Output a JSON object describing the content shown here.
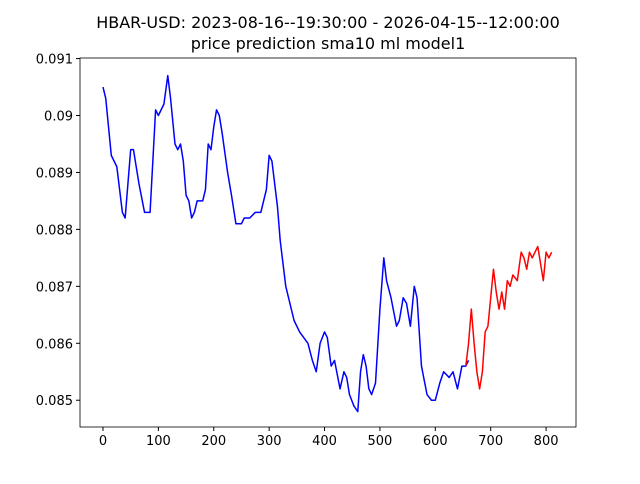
{
  "chart_data": {
    "type": "line",
    "title": "HBAR-USD: 2023-08-16--19:30:00 - 2026-04-15--12:00:00",
    "subtitle": "price prediction sma10 ml model1",
    "xlim": [
      -41.5,
      854
    ],
    "ylim": [
      0.08453,
      0.09101
    ],
    "xticks": [
      0,
      100,
      200,
      300,
      400,
      500,
      600,
      700,
      800
    ],
    "yticks": [
      0.085,
      0.086,
      0.087,
      0.088,
      0.089,
      0.09,
      0.091
    ],
    "grid": false,
    "series": [
      {
        "color": "#0000ff",
        "x": [
          0,
          5,
          15,
          25,
          35,
          40,
          50,
          55,
          65,
          75,
          85,
          95,
          100,
          110,
          117,
          122,
          130,
          135,
          140,
          145,
          150,
          155,
          160,
          165,
          170,
          180,
          185,
          190,
          195,
          200,
          205,
          210,
          215,
          225,
          232,
          240,
          250,
          255,
          265,
          275,
          285,
          295,
          300,
          305,
          315,
          320,
          330,
          340,
          345,
          355,
          370,
          378,
          385,
          392,
          400,
          405,
          412,
          418,
          428,
          435,
          440,
          445,
          453,
          460,
          465,
          470,
          475,
          480,
          485,
          492,
          500,
          507,
          512,
          520,
          530,
          535,
          542,
          548,
          555,
          562,
          567,
          575,
          585,
          593,
          600,
          608,
          615,
          625,
          632,
          640,
          648,
          655,
          660
        ],
        "values": [
          0.0905,
          0.0903,
          0.0893,
          0.0891,
          0.0883,
          0.0882,
          0.0894,
          0.0894,
          0.0888,
          0.0883,
          0.0883,
          0.0901,
          0.09,
          0.0902,
          0.0907,
          0.0903,
          0.0895,
          0.0894,
          0.0895,
          0.0892,
          0.0886,
          0.0885,
          0.0882,
          0.0883,
          0.0885,
          0.0885,
          0.0887,
          0.0895,
          0.0894,
          0.0898,
          0.0901,
          0.09,
          0.0897,
          0.089,
          0.0886,
          0.0881,
          0.0881,
          0.0882,
          0.0882,
          0.0883,
          0.0883,
          0.0887,
          0.0893,
          0.0892,
          0.0884,
          0.0878,
          0.087,
          0.0866,
          0.0864,
          0.0862,
          0.086,
          0.0857,
          0.0855,
          0.086,
          0.0862,
          0.0861,
          0.0856,
          0.0857,
          0.0852,
          0.0855,
          0.0854,
          0.0851,
          0.0849,
          0.0848,
          0.0855,
          0.0858,
          0.0856,
          0.0852,
          0.0851,
          0.0853,
          0.0866,
          0.0875,
          0.0871,
          0.0868,
          0.0863,
          0.0864,
          0.0868,
          0.0867,
          0.0863,
          0.087,
          0.0868,
          0.0856,
          0.0851,
          0.085,
          0.085,
          0.0853,
          0.0855,
          0.0854,
          0.0855,
          0.0852,
          0.0856,
          0.0856,
          0.0857
        ]
      },
      {
        "color": "#ff0000",
        "x": [
          655,
          660,
          665,
          670,
          675,
          680,
          685,
          690,
          695,
          700,
          705,
          710,
          715,
          720,
          725,
          730,
          735,
          740,
          748,
          755,
          760,
          765,
          770,
          775,
          780,
          785,
          790,
          795,
          800,
          805,
          810
        ],
        "values": [
          0.0856,
          0.086,
          0.0866,
          0.086,
          0.0855,
          0.0852,
          0.0855,
          0.0862,
          0.0863,
          0.0868,
          0.0873,
          0.0869,
          0.0866,
          0.0869,
          0.0866,
          0.0871,
          0.087,
          0.0872,
          0.0871,
          0.0876,
          0.0875,
          0.0873,
          0.0876,
          0.0875,
          0.0876,
          0.0877,
          0.0874,
          0.0871,
          0.0876,
          0.0875,
          0.0876
        ]
      }
    ]
  }
}
